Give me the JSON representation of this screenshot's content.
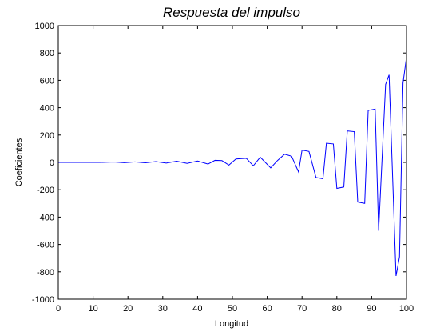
{
  "chart_data": {
    "type": "line",
    "title": "Respuesta del impulso",
    "xlabel": "Longitud",
    "ylabel": "Coeficientes",
    "xlim": [
      0,
      100
    ],
    "ylim": [
      -1000,
      1000
    ],
    "xticks": [
      0,
      10,
      20,
      30,
      40,
      50,
      60,
      70,
      80,
      90,
      100
    ],
    "yticks": [
      -1000,
      -800,
      -600,
      -400,
      -200,
      0,
      200,
      400,
      600,
      800,
      1000
    ],
    "grid": false,
    "line_color": "#0000ff",
    "x": [
      0,
      6,
      12,
      16,
      19,
      22,
      25,
      28,
      31,
      34,
      37,
      40,
      43,
      45,
      47,
      49,
      51,
      54,
      56,
      58,
      61,
      63,
      65,
      67,
      69,
      70,
      72,
      74,
      76,
      77,
      79,
      80,
      82,
      83,
      85,
      86,
      88,
      89,
      91,
      92,
      94,
      95,
      97,
      98,
      99,
      100
    ],
    "values": [
      0,
      0,
      0,
      3,
      -2,
      4,
      -3,
      6,
      -5,
      9,
      -7,
      10,
      -12,
      15,
      13,
      -20,
      25,
      30,
      -25,
      38,
      -40,
      15,
      60,
      45,
      -70,
      90,
      80,
      -110,
      -120,
      140,
      135,
      -190,
      -180,
      230,
      225,
      -290,
      -300,
      380,
      390,
      -500,
      570,
      640,
      -830,
      -690,
      580,
      770
    ]
  }
}
